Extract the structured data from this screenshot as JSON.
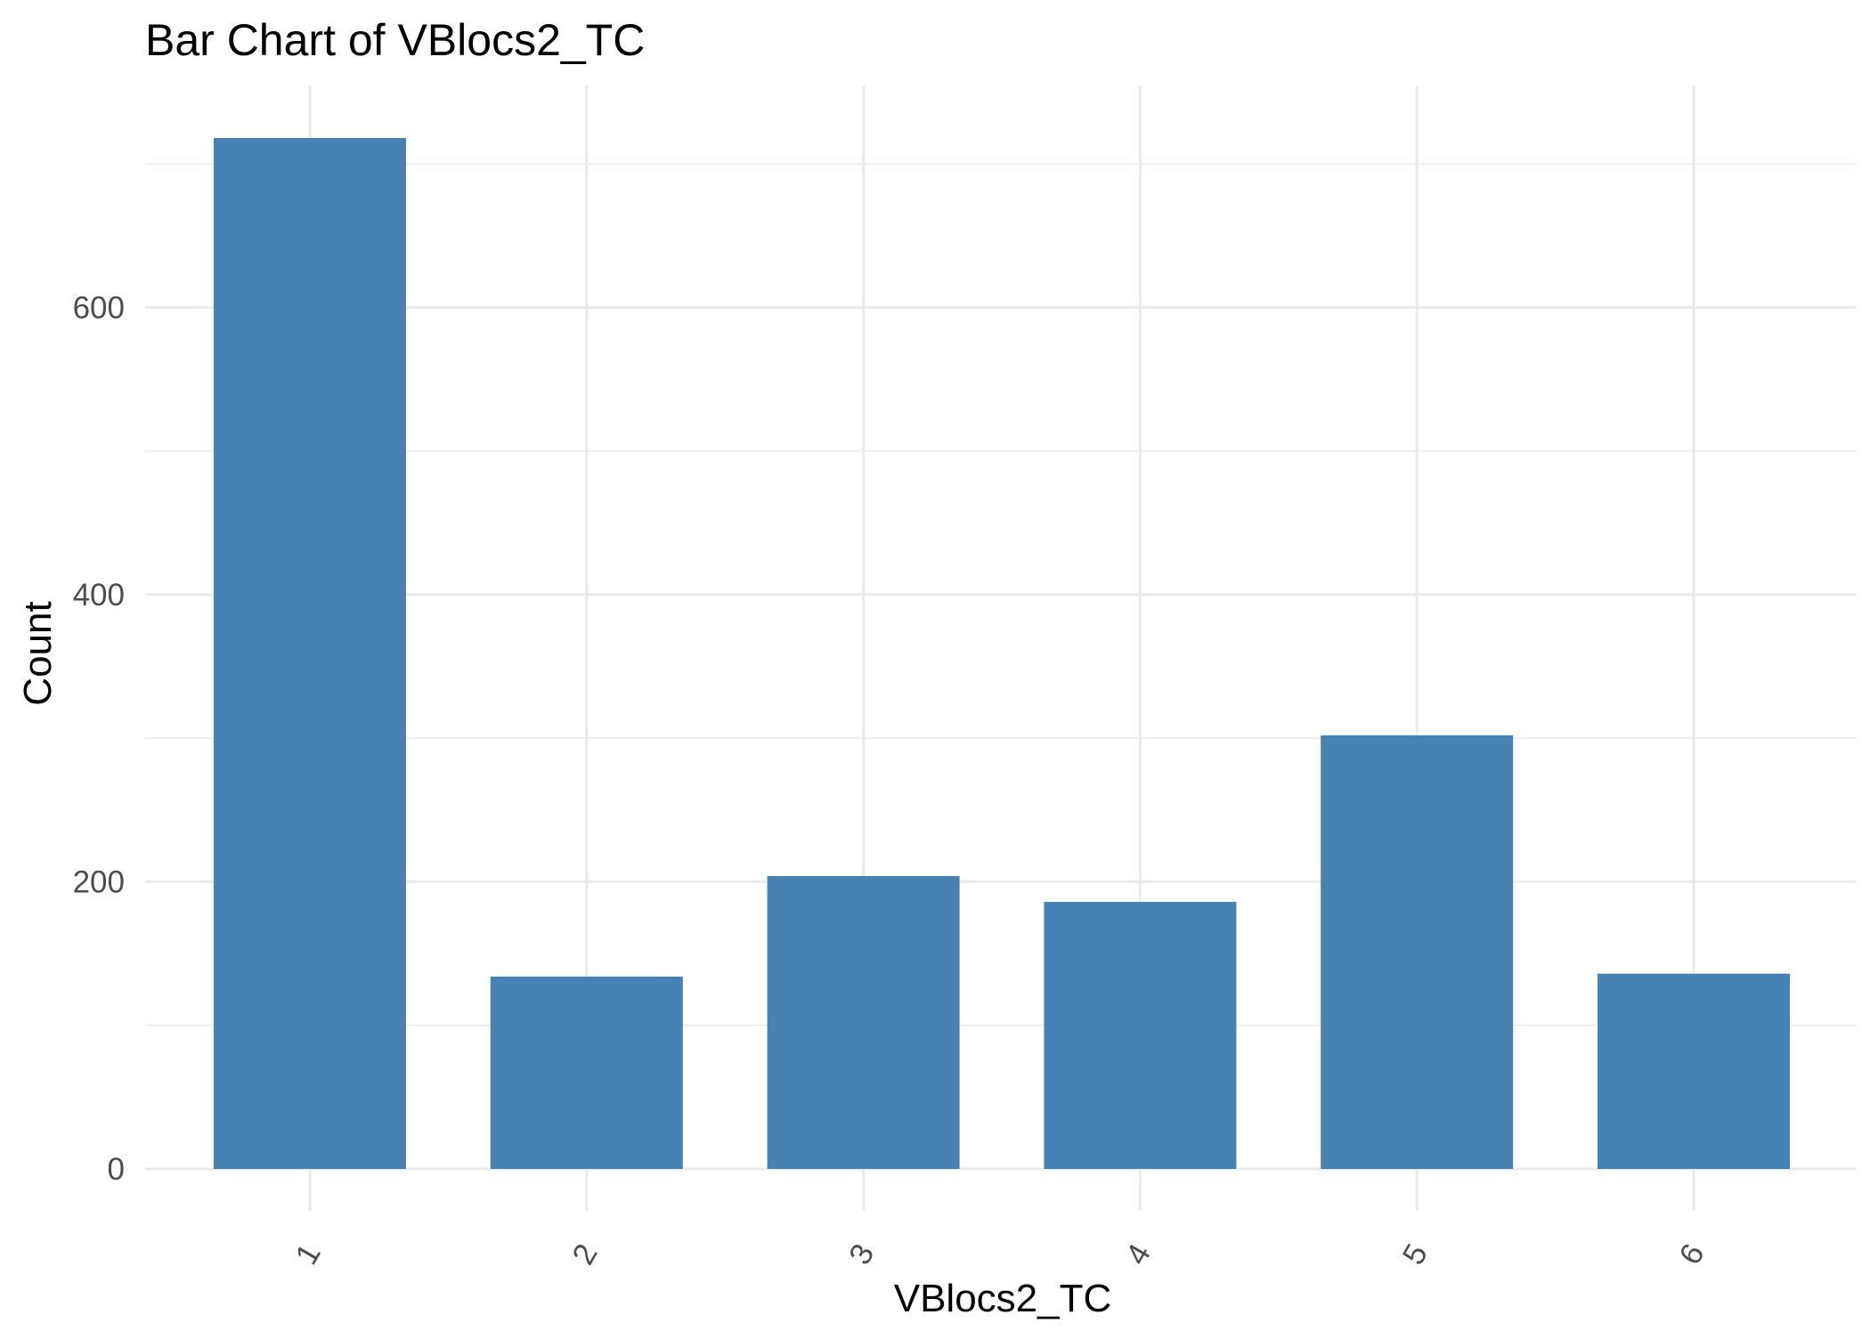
{
  "chart_data": {
    "type": "bar",
    "title": "Bar Chart of  VBlocs2_TC",
    "xlabel": "VBlocs2_TC",
    "ylabel": "Count",
    "categories": [
      "1",
      "2",
      "3",
      "4",
      "5",
      "6"
    ],
    "values": [
      718,
      134,
      204,
      186,
      302,
      136
    ],
    "ylim": [
      0,
      718
    ],
    "yticks": [
      0,
      200,
      400,
      600
    ],
    "ytick_labels": [
      "0",
      "200",
      "400",
      "600"
    ],
    "bar_color": "#4682B4",
    "grid": true,
    "legend": "none",
    "x_tick_rotation": "angled"
  }
}
